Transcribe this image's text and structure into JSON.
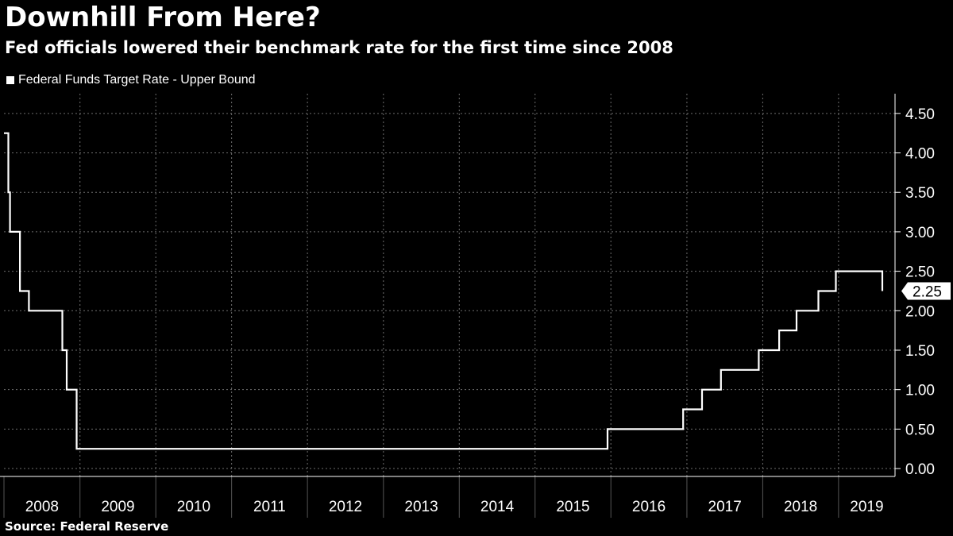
{
  "header": {
    "title": "Downhill From Here?",
    "subtitle": "Fed officials lowered their benchmark rate for the first time since 2008"
  },
  "footer": {
    "source": "Source:  Federal Reserve"
  },
  "chart_data": {
    "type": "line",
    "line_style": "step",
    "legend": [
      {
        "label": "Federal Funds Target Rate - Upper Bound",
        "color": "#ffffff"
      }
    ],
    "legend_position": "top-left",
    "series": [
      {
        "name": "Federal Funds Target Rate - Upper Bound",
        "color": "#ffffff",
        "points": [
          [
            "2008-01-01",
            4.25
          ],
          [
            "2008-01-22",
            3.5
          ],
          [
            "2008-01-30",
            3.0
          ],
          [
            "2008-03-18",
            2.25
          ],
          [
            "2008-04-30",
            2.0
          ],
          [
            "2008-10-08",
            1.5
          ],
          [
            "2008-10-29",
            1.0
          ],
          [
            "2008-12-16",
            0.25
          ],
          [
            "2015-12-16",
            0.5
          ],
          [
            "2016-12-14",
            0.75
          ],
          [
            "2017-03-15",
            1.0
          ],
          [
            "2017-06-14",
            1.25
          ],
          [
            "2017-12-13",
            1.5
          ],
          [
            "2018-03-21",
            1.75
          ],
          [
            "2018-06-13",
            2.0
          ],
          [
            "2018-09-26",
            2.25
          ],
          [
            "2018-12-19",
            2.5
          ],
          [
            "2019-07-31",
            2.25
          ]
        ]
      }
    ],
    "last_value_label": "2.25",
    "x_axis": {
      "type": "date",
      "range": [
        "2008-01-01",
        "2019-09-30"
      ],
      "labels": [
        "2008",
        "2009",
        "2010",
        "2011",
        "2012",
        "2013",
        "2014",
        "2015",
        "2016",
        "2017",
        "2018",
        "2019"
      ]
    },
    "y_axis": {
      "position": "right",
      "range": [
        -0.1,
        4.75
      ],
      "ticks": [
        0,
        0.5,
        1.0,
        1.5,
        2.0,
        2.5,
        3.0,
        3.5,
        4.0,
        4.5
      ],
      "tick_labels": [
        "0.00",
        "0.50",
        "1.00",
        "1.50",
        "2.00",
        "2.50",
        "3.00",
        "3.50",
        "4.00",
        "4.50"
      ]
    },
    "grid": true,
    "colors": {
      "background": "#000000",
      "line": "#ffffff",
      "grid": "#6e6e6e"
    }
  }
}
